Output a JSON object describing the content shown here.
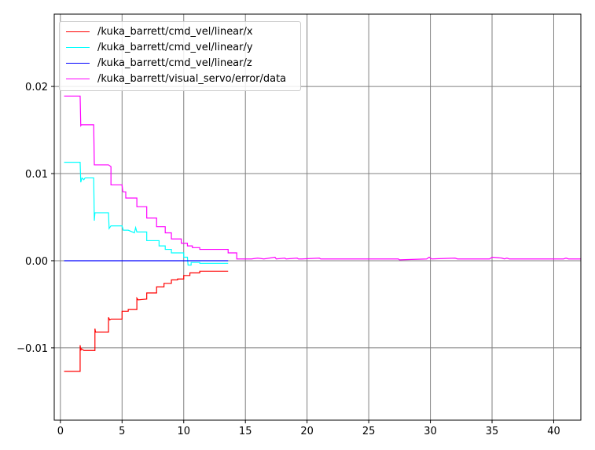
{
  "chart_data": {
    "type": "line",
    "title": "",
    "xlabel": "",
    "ylabel": "",
    "xlim": [
      -0.5,
      42.2
    ],
    "ylim": [
      -0.0183,
      0.0283
    ],
    "xticks": [
      0,
      5,
      10,
      15,
      20,
      25,
      30,
      35,
      40
    ],
    "yticks": [
      -0.01,
      0.0,
      0.01,
      0.02
    ],
    "xtick_labels": [
      "0",
      "5",
      "10",
      "15",
      "20",
      "25",
      "30",
      "35",
      "40"
    ],
    "ytick_labels": [
      "−0.01",
      "0.00",
      "0.01",
      "0.02"
    ],
    "grid": true,
    "legend_position": "top-left",
    "series": [
      {
        "name": "/kuka_barrett/cmd_vel/linear/x",
        "color": "#ff0000",
        "x": [
          0.3,
          1.6,
          1.6,
          1.65,
          1.7,
          1.9,
          2.0,
          2.8,
          2.8,
          2.85,
          3.0,
          3.9,
          3.9,
          4.0,
          4.1,
          5.0,
          5.0,
          5.5,
          5.5,
          6.2,
          6.2,
          6.3,
          7.0,
          7.0,
          7.8,
          7.8,
          8.4,
          8.4,
          9.0,
          9.0,
          9.5,
          9.5,
          10.0,
          10.0,
          10.5,
          10.5,
          11.3,
          11.3,
          13.6
        ],
        "y": [
          -0.0127,
          -0.0127,
          -0.0097,
          -0.0103,
          -0.0101,
          -0.0103,
          -0.0103,
          -0.0103,
          -0.0078,
          -0.0082,
          -0.0082,
          -0.0082,
          -0.0065,
          -0.0068,
          -0.0067,
          -0.0067,
          -0.0058,
          -0.0058,
          -0.0056,
          -0.0056,
          -0.0043,
          -0.0045,
          -0.0044,
          -0.0037,
          -0.0037,
          -0.003,
          -0.003,
          -0.0026,
          -0.0026,
          -0.0022,
          -0.0022,
          -0.0021,
          -0.0021,
          -0.0017,
          -0.0017,
          -0.0014,
          -0.0014,
          -0.0012,
          -0.0012
        ]
      },
      {
        "name": "/kuka_barrett/cmd_vel/linear/y",
        "color": "#00ffff",
        "x": [
          0.3,
          1.6,
          1.65,
          1.75,
          1.9,
          2.0,
          2.7,
          2.75,
          2.8,
          3.9,
          3.95,
          4.1,
          5.0,
          5.1,
          5.5,
          6.0,
          6.1,
          6.2,
          7.0,
          7.0,
          8.0,
          8.0,
          8.5,
          8.5,
          9.0,
          9.0,
          10.0,
          10.0,
          10.3,
          10.35,
          10.6,
          10.6,
          11.3,
          11.3,
          13.6
        ],
        "y": [
          0.0113,
          0.0113,
          0.009,
          0.0095,
          0.0093,
          0.0095,
          0.0095,
          0.0046,
          0.0055,
          0.0055,
          0.0037,
          0.004,
          0.004,
          0.0035,
          0.0035,
          0.0032,
          0.0038,
          0.0033,
          0.0033,
          0.0023,
          0.0023,
          0.0017,
          0.0017,
          0.0013,
          0.0013,
          0.0009,
          0.0009,
          0.0004,
          0.0004,
          -0.0005,
          -0.0005,
          -0.0002,
          -0.0002,
          -0.0003,
          -0.0003
        ]
      },
      {
        "name": "/kuka_barrett/cmd_vel/linear/z",
        "color": "#0000ff",
        "x": [
          0.3,
          13.6
        ],
        "y": [
          0.0,
          0.0
        ]
      },
      {
        "name": "/kuka_barrett/visual_servo/error/data",
        "color": "#ff00ff",
        "x": [
          0.3,
          1.6,
          1.65,
          1.7,
          2.7,
          2.75,
          3.9,
          4.1,
          4.1,
          5.0,
          5.05,
          5.1,
          5.3,
          5.3,
          6.2,
          6.2,
          7.0,
          7.0,
          7.8,
          7.8,
          8.5,
          8.5,
          9.0,
          9.0,
          9.8,
          9.8,
          10.3,
          10.3,
          10.7,
          10.7,
          11.3,
          11.3,
          13.6,
          13.6,
          14.3,
          14.3,
          15.5,
          16.0,
          16.5,
          17.4,
          17.5,
          18.2,
          18.3,
          19.2,
          19.3,
          19.6,
          21.0,
          21.1,
          27.4,
          27.5,
          29.7,
          29.9,
          30.1,
          32.0,
          32.2,
          34.8,
          35.0,
          35.8,
          36.0,
          36.2,
          36.4,
          40.8,
          41.0,
          41.2,
          42.2
        ],
        "y": [
          0.0189,
          0.0189,
          0.0155,
          0.0156,
          0.0156,
          0.011,
          0.011,
          0.0108,
          0.0087,
          0.0087,
          0.008,
          0.0079,
          0.0079,
          0.0072,
          0.0072,
          0.0062,
          0.0062,
          0.0049,
          0.0049,
          0.0039,
          0.0039,
          0.0032,
          0.0032,
          0.0025,
          0.0025,
          0.002,
          0.002,
          0.0017,
          0.0017,
          0.0015,
          0.0015,
          0.0013,
          0.0013,
          0.0009,
          0.0009,
          0.0002,
          0.0002,
          0.0003,
          0.0002,
          0.0004,
          0.0002,
          0.0003,
          0.0002,
          0.0003,
          0.0002,
          0.0002,
          0.0003,
          0.0002,
          0.0002,
          0.0001,
          0.0002,
          0.0004,
          0.0002,
          0.0003,
          0.0002,
          0.0002,
          0.0004,
          0.0003,
          0.0002,
          0.0003,
          0.0002,
          0.0002,
          0.0003,
          0.0002,
          0.0002
        ]
      }
    ]
  }
}
